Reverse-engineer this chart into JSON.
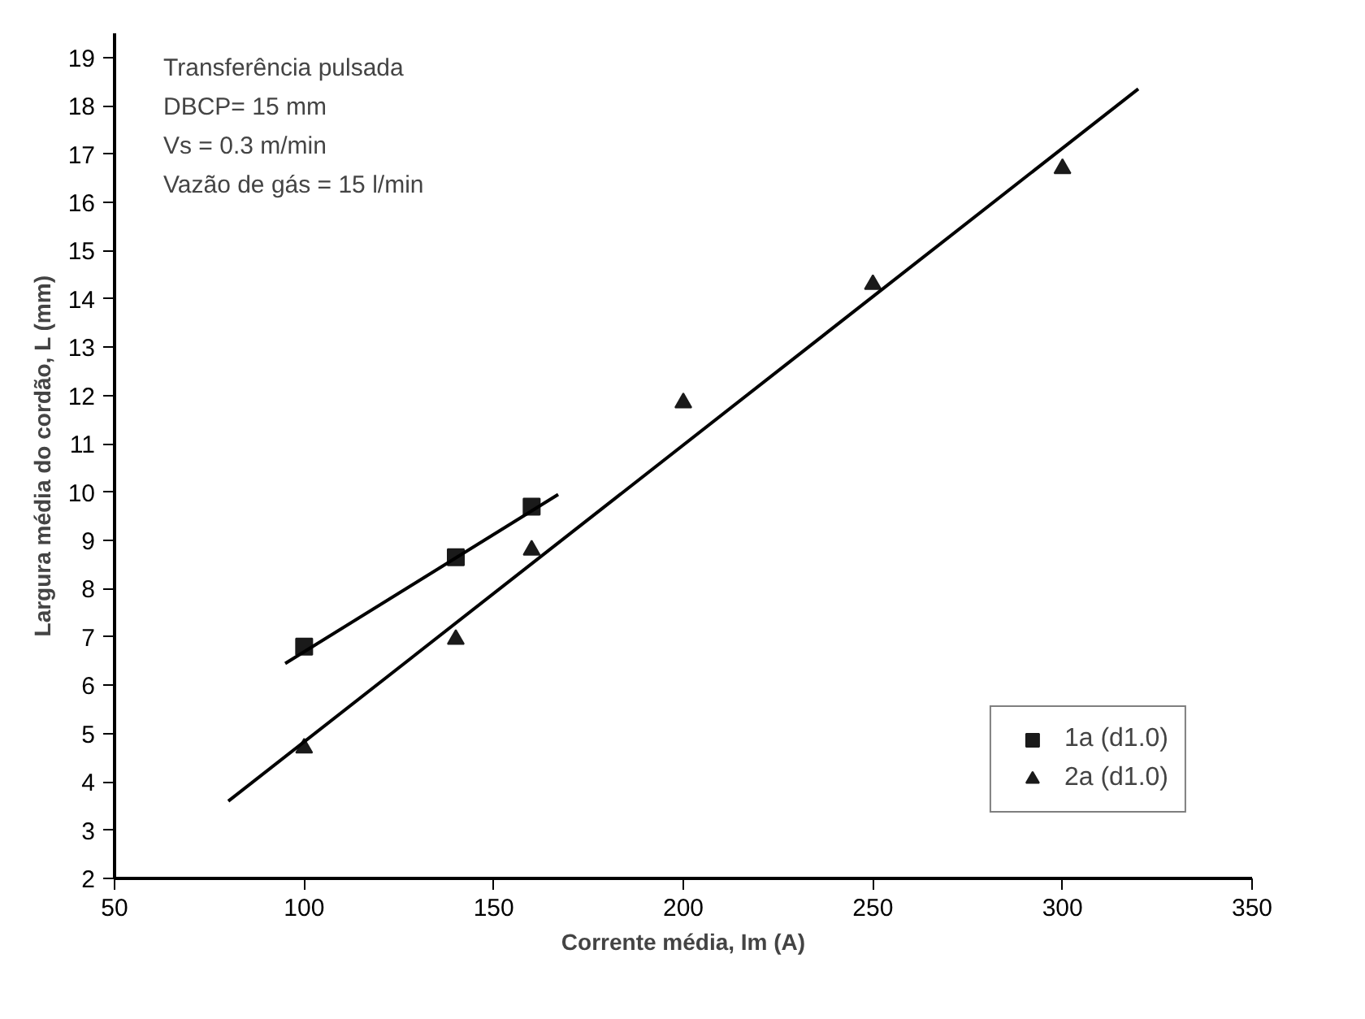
{
  "chart_data": {
    "type": "scatter",
    "xlabel": "Corrente média, Im (A)",
    "ylabel": "Largura média do cordão, L (mm)",
    "annotations": [
      "Transferência pulsada",
      "DBCP= 15 mm",
      "Vs = 0.3 m/min",
      "Vazão de gás = 15 l/min"
    ],
    "xlim": [
      50,
      350
    ],
    "xticks": [
      50,
      100,
      150,
      200,
      250,
      300,
      350
    ],
    "ylim": [
      2,
      19.5
    ],
    "yticks": [
      2,
      3,
      4,
      5,
      6,
      7,
      8,
      9,
      10,
      11,
      12,
      13,
      14,
      15,
      16,
      17,
      18,
      19
    ],
    "grid": false,
    "legend": "bottom right",
    "series": [
      {
        "name": "1a (d1.0)",
        "marker": "square",
        "color": "#1a1a1a",
        "x": [
          100,
          140,
          160
        ],
        "values": [
          6.8,
          8.65,
          9.7
        ]
      },
      {
        "name": "2a (d1.0)",
        "marker": "triangle",
        "color": "#1a1a1a",
        "x": [
          100,
          140,
          160,
          200,
          250,
          300
        ],
        "values": [
          4.7,
          6.95,
          8.8,
          11.85,
          14.3,
          16.7
        ]
      },
      {
        "type": "line",
        "line_style": "solid",
        "color": "#000000",
        "x": [
          95,
          167
        ],
        "values": [
          6.45,
          9.95
        ]
      },
      {
        "type": "line",
        "line_style": "solid",
        "color": "#000000",
        "x": [
          80,
          320
        ],
        "values": [
          3.6,
          18.35
        ]
      }
    ]
  }
}
